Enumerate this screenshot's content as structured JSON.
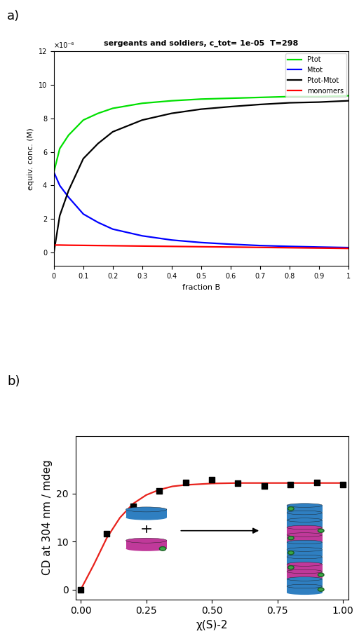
{
  "chart_data": [
    {
      "type": "line",
      "title": "sergeants and soldiers, c_tot= 1e-05  T=298",
      "annotations": [
        "a)",
        "×10⁻⁶"
      ],
      "x_label": "fraction B",
      "y_label": "equiv. conc. (M)",
      "x": [
        0,
        0.02,
        0.05,
        0.1,
        0.15,
        0.2,
        0.3,
        0.4,
        0.5,
        0.6,
        0.7,
        0.8,
        0.9,
        1
      ],
      "series": [
        {
          "name": "Ptot",
          "color": "#00e000",
          "values": [
            4.8,
            6.2,
            7.0,
            7.9,
            8.3,
            8.6,
            8.9,
            9.05,
            9.15,
            9.2,
            9.25,
            9.3,
            9.3,
            9.35
          ]
        },
        {
          "name": "Mtot",
          "color": "#0000ff",
          "values": [
            4.8,
            4.0,
            3.3,
            2.3,
            1.8,
            1.4,
            1.0,
            0.75,
            0.6,
            0.5,
            0.42,
            0.37,
            0.33,
            0.3
          ]
        },
        {
          "name": "Ptot-Mtot",
          "color": "#000000",
          "values": [
            0.0,
            2.2,
            3.7,
            5.6,
            6.5,
            7.2,
            7.9,
            8.3,
            8.55,
            8.7,
            8.83,
            8.93,
            8.97,
            9.05
          ]
        },
        {
          "name": "monomers",
          "color": "#ff0000",
          "values": [
            0.45,
            0.45,
            0.44,
            0.43,
            0.42,
            0.41,
            0.39,
            0.37,
            0.35,
            0.33,
            0.31,
            0.29,
            0.27,
            0.25
          ]
        }
      ],
      "xlim": [
        0,
        1
      ],
      "xticks": [
        0,
        0.1,
        0.2,
        0.3,
        0.4,
        0.5,
        0.6,
        0.7,
        0.8,
        0.9,
        1
      ],
      "ylim": [
        -0.8,
        12
      ],
      "yticks": [
        0,
        2,
        4,
        6,
        8,
        10,
        12
      ],
      "legend": "upper right"
    },
    {
      "type": "scatter",
      "annotations": [
        "b)"
      ],
      "x_label": "χ(S)-2",
      "y_label": "CD at 304 nm / mdeg",
      "series": [
        {
          "type": "scatter",
          "marker": "square",
          "color": "#000000",
          "x": [
            0,
            0.1,
            0.2,
            0.3,
            0.4,
            0.5,
            0.6,
            0.7,
            0.8,
            0.9,
            1.0
          ],
          "values": [
            0,
            11.6,
            17.3,
            20.6,
            22.3,
            22.9,
            22.2,
            21.6,
            21.8,
            22.3,
            21.9
          ]
        },
        {
          "type": "line",
          "color": "#e8221c",
          "x": [
            0,
            0.05,
            0.1,
            0.15,
            0.2,
            0.25,
            0.3,
            0.35,
            0.4,
            0.5,
            0.6,
            0.7,
            0.8,
            0.9,
            1.0
          ],
          "values": [
            0,
            5.2,
            10.8,
            15.0,
            17.9,
            19.7,
            20.8,
            21.5,
            21.8,
            22.1,
            22.2,
            22.2,
            22.2,
            22.2,
            22.2
          ]
        }
      ],
      "xlim": [
        -0.02,
        1.02
      ],
      "xticks": [
        {
          "value": 0,
          "label": "0.00"
        },
        {
          "value": 0.25,
          "label": "0.25"
        },
        {
          "value": 0.5,
          "label": "0.50"
        },
        {
          "value": 0.75,
          "label": "0.75"
        },
        {
          "value": 1,
          "label": "1.00"
        }
      ],
      "ylim": [
        -2,
        32
      ],
      "yticks": [
        0,
        10,
        20
      ]
    }
  ]
}
